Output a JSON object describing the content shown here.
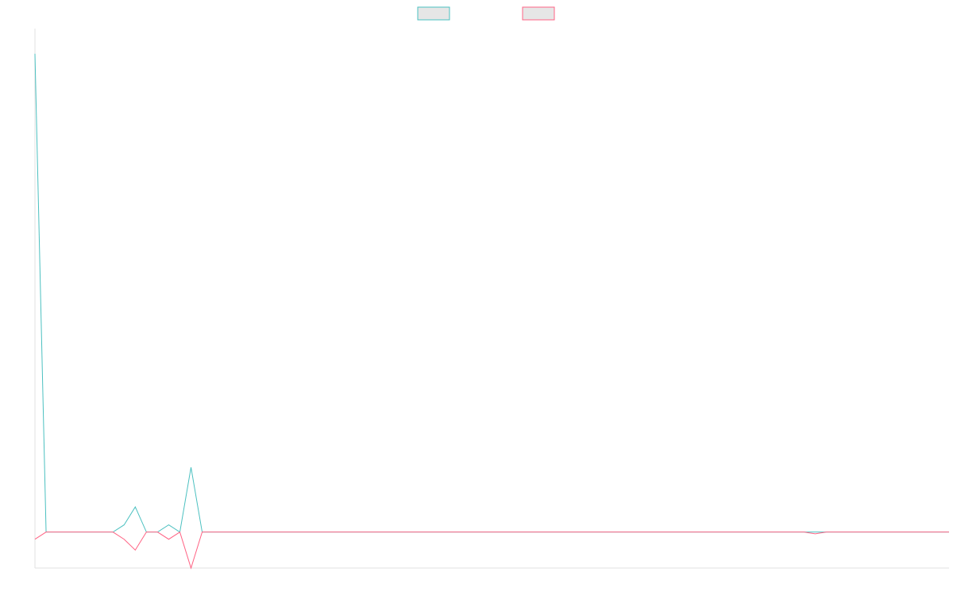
{
  "chart_data": {
    "type": "line",
    "title": "",
    "xlabel": "",
    "ylabel": "",
    "ylim": [
      -0.1,
      1.4
    ],
    "grid": false,
    "legend_position": "top-center",
    "x": [
      0,
      1,
      2,
      3,
      4,
      5,
      6,
      7,
      8,
      9,
      10,
      11,
      12,
      13,
      14,
      15,
      16,
      17,
      18,
      19,
      20,
      21,
      22,
      23,
      24,
      25,
      26,
      27,
      28,
      29,
      30,
      31,
      32,
      33,
      34,
      35,
      36,
      37,
      38,
      39,
      40,
      41,
      42,
      43,
      44,
      45,
      46,
      47,
      48,
      49,
      50,
      51,
      52,
      53,
      54,
      55,
      56,
      57,
      58,
      59,
      60,
      61,
      62,
      63,
      64,
      65,
      66,
      67,
      68,
      69,
      70,
      71,
      72,
      73,
      74,
      75,
      76,
      77,
      78,
      79,
      80,
      81,
      82
    ],
    "series": [
      {
        "name": "",
        "color": "#4bc0c0",
        "values": [
          1.33,
          0,
          0,
          0,
          0,
          0,
          0,
          0,
          0.02,
          0.07,
          0,
          0,
          0.02,
          0,
          0.18,
          0,
          0,
          0,
          0,
          0,
          0,
          0,
          0,
          0,
          0,
          0,
          0,
          0,
          0,
          0,
          0,
          0,
          0,
          0,
          0,
          0,
          0,
          0,
          0,
          0,
          0,
          0,
          0,
          0,
          0,
          0,
          0,
          0,
          0,
          0,
          0,
          0,
          0,
          0,
          0,
          0,
          0,
          0,
          0,
          0,
          0,
          0,
          0,
          0,
          0,
          0,
          0,
          0,
          0,
          0,
          0,
          0,
          0,
          0,
          0,
          0,
          0,
          0,
          0,
          0,
          0,
          0,
          0
        ]
      },
      {
        "name": "",
        "color": "#ff6384",
        "values": [
          -0.02,
          0,
          0,
          0,
          0,
          0,
          0,
          0,
          -0.02,
          -0.05,
          0,
          0,
          -0.02,
          0,
          -0.1,
          0,
          0,
          0,
          0,
          0,
          0,
          0,
          0,
          0,
          0,
          0,
          0,
          0,
          0,
          0,
          0,
          0,
          0,
          0,
          0,
          0,
          0,
          0,
          0,
          0,
          0,
          0,
          0,
          0,
          0,
          0,
          0,
          0,
          0,
          0,
          0,
          0,
          0,
          0,
          0,
          0,
          0,
          0,
          0,
          0,
          0,
          0,
          0,
          0,
          0,
          0,
          0,
          0,
          0,
          0,
          -0.005,
          0,
          0,
          0,
          0,
          0,
          0,
          0,
          0,
          0,
          0,
          0,
          0
        ]
      }
    ]
  }
}
